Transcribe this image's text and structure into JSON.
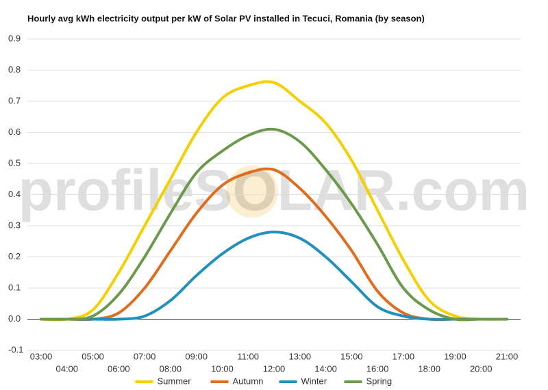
{
  "chart_data": {
    "type": "line",
    "title": "Hourly avg kWh electricity output per kW of Solar PV installed in Tecuci, Romania (by season)",
    "watermark": "profileSOLAR.com",
    "categories": [
      "03:00",
      "04:00",
      "05:00",
      "06:00",
      "07:00",
      "08:00",
      "09:00",
      "10:00",
      "11:00",
      "12:00",
      "13:00",
      "14:00",
      "15:00",
      "16:00",
      "17:00",
      "18:00",
      "19:00",
      "20:00",
      "21:00"
    ],
    "series": [
      {
        "name": "Summer",
        "color": "#f5d000",
        "values": [
          0,
          0,
          0.03,
          0.15,
          0.3,
          0.45,
          0.6,
          0.71,
          0.75,
          0.76,
          0.7,
          0.63,
          0.51,
          0.35,
          0.19,
          0.06,
          0.01,
          0,
          0
        ]
      },
      {
        "name": "Autumn",
        "color": "#e06c1e",
        "values": [
          0,
          0,
          0,
          0.02,
          0.1,
          0.22,
          0.34,
          0.43,
          0.47,
          0.48,
          0.42,
          0.33,
          0.22,
          0.09,
          0.02,
          0,
          0,
          0,
          0
        ]
      },
      {
        "name": "Winter",
        "color": "#2190bd",
        "values": [
          0,
          0,
          0,
          0,
          0.01,
          0.06,
          0.14,
          0.21,
          0.26,
          0.28,
          0.26,
          0.2,
          0.12,
          0.04,
          0.01,
          0,
          0,
          0,
          0
        ]
      },
      {
        "name": "Spring",
        "color": "#6b9a4c",
        "values": [
          0,
          0,
          0.01,
          0.08,
          0.2,
          0.34,
          0.47,
          0.54,
          0.59,
          0.61,
          0.57,
          0.48,
          0.37,
          0.24,
          0.1,
          0.03,
          0,
          0,
          0
        ]
      }
    ],
    "ylim": [
      -0.1,
      0.9
    ],
    "yticks": [
      -0.1,
      {
        "value": 0,
        "label": "0.0"
      },
      0.1,
      0.2,
      0.3,
      0.4,
      0.5,
      0.6,
      0.7,
      0.8,
      0.9
    ],
    "grid": true,
    "legend": "bottom"
  }
}
